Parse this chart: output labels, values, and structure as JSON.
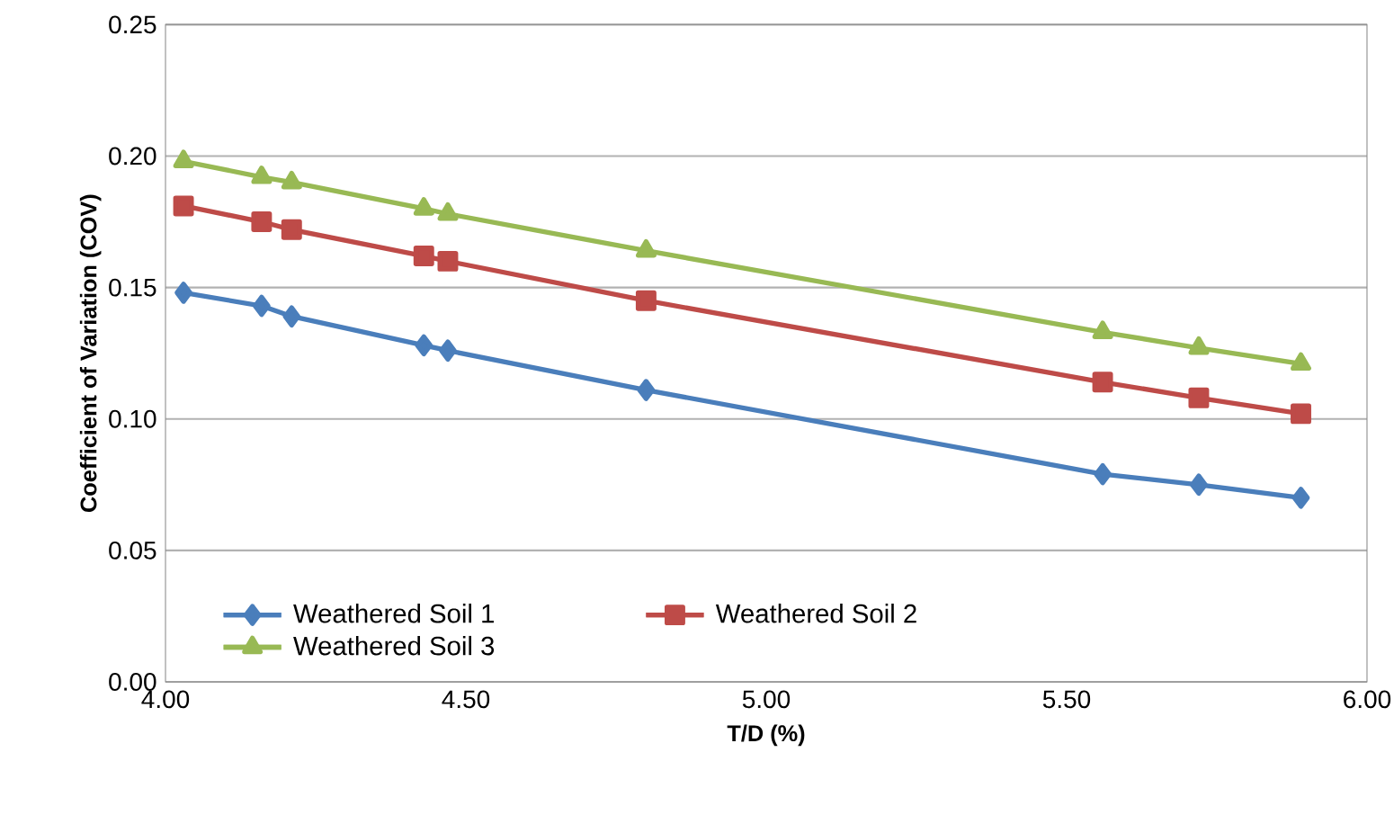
{
  "chart_data": {
    "type": "line",
    "xlabel": "T/D (%)",
    "ylabel": "Coefficient of Variation (COV)",
    "x": [
      4.03,
      4.16,
      4.21,
      4.43,
      4.47,
      4.8,
      5.56,
      5.72,
      5.89
    ],
    "series": [
      {
        "name": "Weathered Soil 1",
        "color": "#4a7ebb",
        "marker": "diamond",
        "values": [
          0.148,
          0.143,
          0.139,
          0.128,
          0.126,
          0.111,
          0.079,
          0.075,
          0.07
        ]
      },
      {
        "name": "Weathered Soil 2",
        "color": "#be4b48",
        "marker": "square",
        "values": [
          0.181,
          0.175,
          0.172,
          0.162,
          0.16,
          0.145,
          0.114,
          0.108,
          0.102
        ]
      },
      {
        "name": "Weathered Soil 3",
        "color": "#98b954",
        "marker": "triangle",
        "values": [
          0.198,
          0.192,
          0.19,
          0.18,
          0.178,
          0.164,
          0.133,
          0.127,
          0.121
        ]
      }
    ],
    "xlim": [
      4.0,
      6.0
    ],
    "xticks": [
      {
        "value": 4.0,
        "label": "4.00"
      },
      {
        "value": 4.5,
        "label": "4.50"
      },
      {
        "value": 5.0,
        "label": "5.00"
      },
      {
        "value": 5.5,
        "label": "5.50"
      },
      {
        "value": 6.0,
        "label": "6.00"
      }
    ],
    "ylim": [
      0,
      0.25
    ],
    "yticks": [
      {
        "value": 0,
        "label": "0.00"
      },
      {
        "value": 0.05,
        "label": "0.05"
      },
      {
        "value": 0.1,
        "label": "0.10"
      },
      {
        "value": 0.15,
        "label": "0.15"
      },
      {
        "value": 0.2,
        "label": "0.20"
      },
      {
        "value": 0.25,
        "label": "0.25"
      }
    ],
    "grid": "y",
    "legend": "bottom",
    "line_style": "solid"
  }
}
